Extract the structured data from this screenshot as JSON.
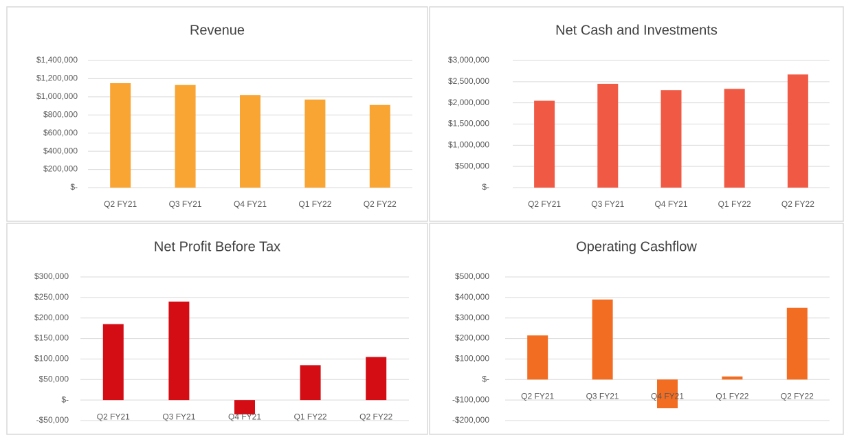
{
  "chart_data": [
    {
      "type": "bar",
      "title": "Revenue",
      "color": "#f9a533",
      "grid": true,
      "categories": [
        "Q2 FY21",
        "Q3 FY21",
        "Q4 FY21",
        "Q1 FY22",
        "Q2 FY22"
      ],
      "values": [
        1150000,
        1130000,
        1020000,
        970000,
        910000
      ],
      "ylim": [
        0,
        1400000
      ],
      "yticks": [
        {
          "value": 0,
          "label": "$-"
        },
        {
          "value": 200000,
          "label": "$200,000"
        },
        {
          "value": 400000,
          "label": "$400,000"
        },
        {
          "value": 600000,
          "label": "$600,000"
        },
        {
          "value": 800000,
          "label": "$800,000"
        },
        {
          "value": 1000000,
          "label": "$1,000,000"
        },
        {
          "value": 1200000,
          "label": "$1,200,000"
        },
        {
          "value": 1400000,
          "label": "$1,400,000"
        }
      ]
    },
    {
      "type": "bar",
      "title": "Net Cash and Investments",
      "color": "#f05a44",
      "grid": true,
      "categories": [
        "Q2 FY21",
        "Q3 FY21",
        "Q4 FY21",
        "Q1 FY22",
        "Q2 FY22"
      ],
      "values": [
        2050000,
        2450000,
        2300000,
        2330000,
        2670000
      ],
      "ylim": [
        0,
        3000000
      ],
      "yticks": [
        {
          "value": 0,
          "label": "$-"
        },
        {
          "value": 500000,
          "label": "$500,000"
        },
        {
          "value": 1000000,
          "label": "$1,000,000"
        },
        {
          "value": 1500000,
          "label": "$1,500,000"
        },
        {
          "value": 2000000,
          "label": "$2,000,000"
        },
        {
          "value": 2500000,
          "label": "$2,500,000"
        },
        {
          "value": 3000000,
          "label": "$3,000,000"
        }
      ]
    },
    {
      "type": "bar",
      "title": "Net Profit Before Tax",
      "color": "#d40d14",
      "grid": true,
      "categories": [
        "Q2 FY21",
        "Q3 FY21",
        "Q4 FY21",
        "Q1 FY22",
        "Q2 FY22"
      ],
      "values": [
        185000,
        240000,
        -35000,
        85000,
        105000
      ],
      "ylim": [
        -50000,
        300000
      ],
      "yticks": [
        {
          "value": -50000,
          "label": "-$50,000"
        },
        {
          "value": 0,
          "label": "$-"
        },
        {
          "value": 50000,
          "label": "$50,000"
        },
        {
          "value": 100000,
          "label": "$100,000"
        },
        {
          "value": 150000,
          "label": "$150,000"
        },
        {
          "value": 200000,
          "label": "$200,000"
        },
        {
          "value": 250000,
          "label": "$250,000"
        },
        {
          "value": 300000,
          "label": "$300,000"
        }
      ]
    },
    {
      "type": "bar",
      "title": "Operating Cashflow",
      "color": "#f26c21",
      "grid": true,
      "categories": [
        "Q2 FY21",
        "Q3 FY21",
        "Q4 FY21",
        "Q1 FY22",
        "Q2 FY22"
      ],
      "values": [
        215000,
        390000,
        -140000,
        15000,
        350000
      ],
      "ylim": [
        -200000,
        500000
      ],
      "yticks": [
        {
          "value": -200000,
          "label": "-$200,000"
        },
        {
          "value": -100000,
          "label": "-$100,000"
        },
        {
          "value": 0,
          "label": "$-"
        },
        {
          "value": 100000,
          "label": "$100,000"
        },
        {
          "value": 200000,
          "label": "$200,000"
        },
        {
          "value": 300000,
          "label": "$300,000"
        },
        {
          "value": 400000,
          "label": "$400,000"
        },
        {
          "value": 500000,
          "label": "$500,000"
        }
      ]
    }
  ]
}
